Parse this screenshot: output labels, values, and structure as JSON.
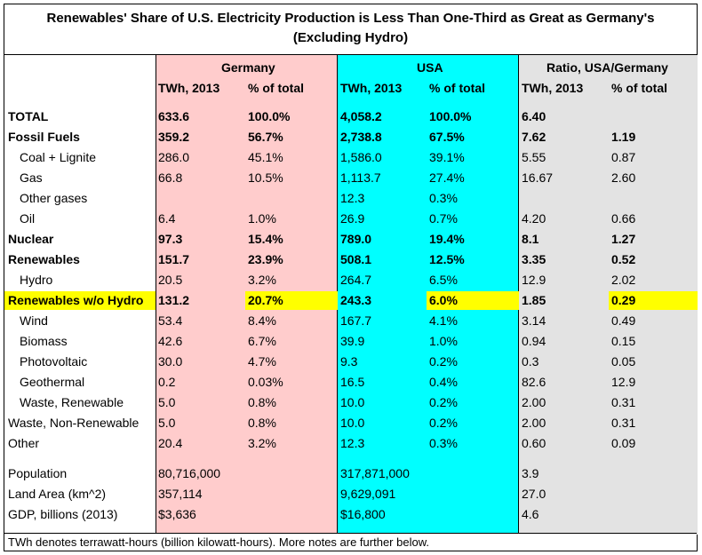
{
  "title_line1": "Renewables' Share of U.S. Electricity Production is Less Than One-Third as Great as Germany's",
  "title_line2": "(Excluding Hydro)",
  "groups": {
    "germany": "Germany",
    "usa": "USA",
    "ratio": "Ratio, USA/Germany"
  },
  "subheaders": [
    "TWh, 2013",
    "% of total",
    "TWh, 2013",
    "% of total",
    "TWh, 2013",
    "% of total"
  ],
  "rows": [
    {
      "label": "TOTAL",
      "de_twh": "633.6",
      "de_pct": "100.0%",
      "us_twh": "4,058.2",
      "us_pct": "100.0%",
      "r_twh": "6.40",
      "r_pct": ""
    },
    {
      "label": "Fossil Fuels",
      "de_twh": "359.2",
      "de_pct": "56.7%",
      "us_twh": "2,738.8",
      "us_pct": "67.5%",
      "r_twh": "7.62",
      "r_pct": "1.19"
    },
    {
      "label": "Coal + Lignite",
      "de_twh": "286.0",
      "de_pct": "45.1%",
      "us_twh": "1,586.0",
      "us_pct": "39.1%",
      "r_twh": "5.55",
      "r_pct": "0.87"
    },
    {
      "label": "Gas",
      "de_twh": "66.8",
      "de_pct": "10.5%",
      "us_twh": "1,113.7",
      "us_pct": "27.4%",
      "r_twh": "16.67",
      "r_pct": "2.60"
    },
    {
      "label": "Other gases",
      "de_twh": "",
      "de_pct": "",
      "us_twh": "12.3",
      "us_pct": "0.3%",
      "r_twh": "",
      "r_pct": ""
    },
    {
      "label": "Oil",
      "de_twh": "6.4",
      "de_pct": "1.0%",
      "us_twh": "26.9",
      "us_pct": "0.7%",
      "r_twh": "4.20",
      "r_pct": "0.66"
    },
    {
      "label": "Nuclear",
      "de_twh": "97.3",
      "de_pct": "15.4%",
      "us_twh": "789.0",
      "us_pct": "19.4%",
      "r_twh": "8.1",
      "r_pct": "1.27"
    },
    {
      "label": "Renewables",
      "de_twh": "151.7",
      "de_pct": "23.9%",
      "us_twh": "508.1",
      "us_pct": "12.5%",
      "r_twh": "3.35",
      "r_pct": "0.52"
    },
    {
      "label": "Hydro",
      "de_twh": "20.5",
      "de_pct": "3.2%",
      "us_twh": "264.7",
      "us_pct": "6.5%",
      "r_twh": "12.9",
      "r_pct": "2.02"
    },
    {
      "label": "Renewables w/o Hydro",
      "de_twh": "131.2",
      "de_pct": "20.7%",
      "us_twh": "243.3",
      "us_pct": "6.0%",
      "r_twh": "1.85",
      "r_pct": "0.29"
    },
    {
      "label": "Wind",
      "de_twh": "53.4",
      "de_pct": "8.4%",
      "us_twh": "167.7",
      "us_pct": "4.1%",
      "r_twh": "3.14",
      "r_pct": "0.49"
    },
    {
      "label": "Biomass",
      "de_twh": "42.6",
      "de_pct": "6.7%",
      "us_twh": "39.9",
      "us_pct": "1.0%",
      "r_twh": "0.94",
      "r_pct": "0.15"
    },
    {
      "label": "Photovoltaic",
      "de_twh": "30.0",
      "de_pct": "4.7%",
      "us_twh": "9.3",
      "us_pct": "0.2%",
      "r_twh": "0.3",
      "r_pct": "0.05"
    },
    {
      "label": "Geothermal",
      "de_twh": "0.2",
      "de_pct": "0.03%",
      "us_twh": "16.5",
      "us_pct": "0.4%",
      "r_twh": "82.6",
      "r_pct": "12.9"
    },
    {
      "label": "Waste, Renewable",
      "de_twh": "5.0",
      "de_pct": "0.8%",
      "us_twh": "10.0",
      "us_pct": "0.2%",
      "r_twh": "2.00",
      "r_pct": "0.31"
    },
    {
      "label": "Waste, Non-Renewable",
      "de_twh": "5.0",
      "de_pct": "0.8%",
      "us_twh": "10.0",
      "us_pct": "0.2%",
      "r_twh": "2.00",
      "r_pct": "0.31"
    },
    {
      "label": "Other",
      "de_twh": "20.4",
      "de_pct": "3.2%",
      "us_twh": "12.3",
      "us_pct": "0.3%",
      "r_twh": "0.60",
      "r_pct": "0.09"
    }
  ],
  "stats": [
    {
      "label": "Population",
      "de": "80,716,000",
      "us": "317,871,000",
      "ratio": "3.9"
    },
    {
      "label": "Land Area (km^2)",
      "de": "357,114",
      "us": "9,629,091",
      "ratio": "27.0"
    },
    {
      "label": "GDP, billions (2013)",
      "de": "$3,636",
      "us": "$16,800",
      "ratio": "4.6"
    }
  ],
  "footer": "TWh denotes terrawatt-hours (billion kilowatt-hours). More notes are further below.",
  "colors": {
    "germany_bg": "#ffcccc",
    "usa_bg": "#00ffff",
    "ratio_bg": "#e3e3e3",
    "highlight": "#ffff00"
  }
}
